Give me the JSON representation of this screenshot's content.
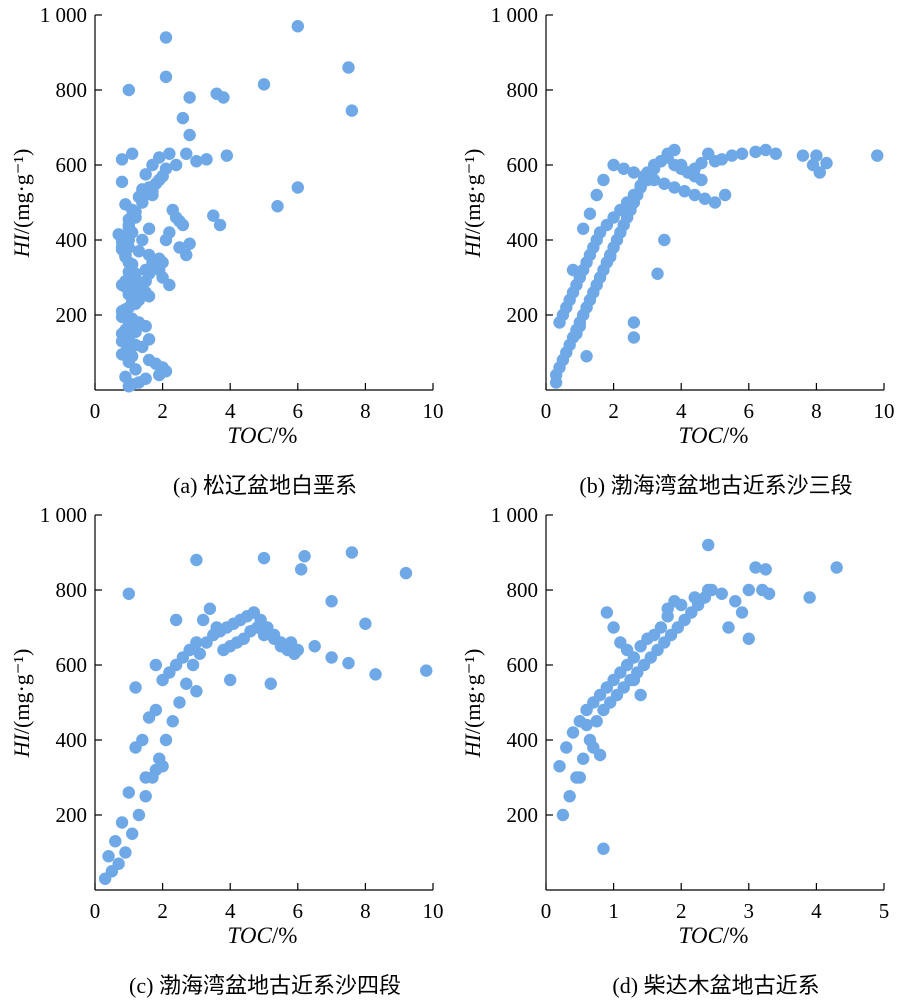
{
  "chart_data": [
    {
      "type": "scatter",
      "caption": "(a) 松辽盆地白垩系",
      "xlabel": "TOC/%",
      "ylabel": "HI/(mg·g⁻¹)",
      "xlim": [
        0,
        10
      ],
      "ylim": [
        0,
        1000
      ],
      "xticks": [
        "0",
        "2",
        "4",
        "6",
        "8",
        "10"
      ],
      "yticks": [
        "200",
        "400",
        "600",
        "800",
        "1 000"
      ],
      "color": "#6fa8e6",
      "x": [
        2.1,
        6.0,
        2.1,
        1.0,
        5.0,
        7.5,
        7.6,
        3.6,
        3.8,
        2.8,
        2.6,
        2.8,
        0.8,
        1.1,
        2.2,
        2.7,
        3.0,
        3.3,
        3.9,
        2.4,
        2.0,
        1.9,
        1.6,
        1.7,
        6.0,
        5.4,
        3.5,
        3.7,
        2.5,
        2.8,
        1.4,
        1.1,
        1.2,
        1.6,
        1.0,
        1.0,
        0.9,
        1.3,
        0.9,
        1.0,
        1.8,
        1.5,
        1.2,
        1.1,
        0.9,
        0.8,
        1.0,
        1.5,
        1.6,
        1.3,
        1.2,
        1.0,
        0.8,
        0.9,
        1.1,
        1.3,
        1.5,
        0.9,
        0.8,
        1.0,
        0.8,
        1.2,
        1.0,
        0.9,
        1.1,
        1.6,
        1.8,
        2.0,
        2.1,
        1.9,
        1.5,
        1.3,
        1.1,
        1.0,
        0.9,
        1.2,
        1.0,
        0.8,
        1.4,
        1.6,
        1.2,
        1.0,
        0.8,
        0.9,
        1.1,
        1.0,
        0.9,
        1.2,
        1.0,
        1.1,
        0.9,
        0.8,
        0.8,
        0.7,
        1.0,
        1.0,
        1.2,
        0.9,
        1.3,
        1.4,
        0.8,
        1.5,
        1.7,
        1.9,
        2.1,
        2.0,
        1.8,
        1.7,
        1.4,
        2.3,
        2.4,
        2.6,
        2.2,
        2.1,
        2.5,
        2.7,
        1.9,
        2.0,
        1.8,
        1.6,
        1.5,
        1.3,
        1.2,
        1.1,
        1.4,
        1.0,
        1.6,
        1.7,
        1.9,
        2.0,
        2.2,
        0.9,
        0.8,
        1.1,
        1.0
      ],
      "y": [
        940,
        970,
        835,
        800,
        815,
        860,
        745,
        790,
        780,
        780,
        725,
        680,
        615,
        630,
        630,
        630,
        610,
        615,
        625,
        600,
        570,
        560,
        540,
        520,
        540,
        490,
        465,
        440,
        450,
        390,
        500,
        480,
        460,
        430,
        420,
        400,
        380,
        370,
        360,
        340,
        330,
        320,
        310,
        300,
        290,
        280,
        270,
        260,
        250,
        240,
        230,
        220,
        210,
        200,
        190,
        180,
        170,
        160,
        150,
        140,
        130,
        120,
        110,
        100,
        90,
        80,
        70,
        60,
        50,
        40,
        30,
        20,
        15,
        10,
        35,
        55,
        75,
        95,
        115,
        135,
        155,
        175,
        195,
        215,
        235,
        255,
        275,
        295,
        315,
        335,
        355,
        375,
        395,
        415,
        435,
        455,
        475,
        495,
        515,
        535,
        555,
        575,
        600,
        620,
        590,
        570,
        550,
        530,
        510,
        480,
        460,
        440,
        420,
        400,
        380,
        360,
        350,
        340,
        330,
        310,
        290,
        270,
        250,
        230,
        400,
        380,
        360,
        340,
        320,
        300,
        280,
        360,
        380,
        420,
        440
      ],
      "bubble_note": ""
    },
    {
      "type": "scatter",
      "caption": "(b) 渤海湾盆地古近系沙三段",
      "xlabel": "TOC/%",
      "ylabel": "HI/(mg·g⁻¹)",
      "xlim": [
        0,
        10
      ],
      "ylim": [
        0,
        1000
      ],
      "xticks": [
        "0",
        "2",
        "4",
        "6",
        "8",
        "10"
      ],
      "yticks": [
        "200",
        "400",
        "600",
        "800",
        "1 000"
      ],
      "color": "#6fa8e6",
      "x": [
        9.8,
        8.3,
        8.1,
        7.9,
        8.0,
        7.6,
        6.8,
        6.5,
        6.2,
        5.8,
        5.5,
        5.2,
        5.0,
        4.8,
        4.6,
        4.4,
        4.2,
        4.0,
        3.8,
        3.6,
        3.4,
        3.2,
        3.0,
        2.8,
        2.6,
        2.4,
        2.2,
        2.0,
        1.8,
        1.6,
        1.5,
        1.4,
        1.3,
        1.2,
        1.1,
        1.0,
        0.9,
        0.8,
        0.7,
        0.6,
        0.5,
        0.4,
        0.3,
        0.3,
        0.4,
        0.5,
        0.6,
        0.7,
        0.8,
        0.9,
        1.0,
        1.1,
        1.2,
        1.3,
        1.4,
        1.5,
        1.6,
        1.7,
        1.8,
        1.9,
        2.0,
        2.1,
        2.2,
        2.3,
        2.4,
        2.5,
        2.6,
        2.7,
        2.8,
        2.9,
        3.0,
        3.2,
        3.4,
        3.6,
        3.8,
        4.0,
        4.2,
        4.4,
        4.6,
        3.5,
        3.3,
        2.6,
        2.6,
        1.9,
        1.2,
        0.8,
        0.9,
        1.0,
        1.1,
        1.3,
        1.5,
        1.7,
        2.0,
        2.3,
        2.6,
        2.9,
        3.2,
        3.5,
        3.8,
        4.1,
        4.4,
        4.7,
        5.0,
        5.3
      ],
      "y": [
        625,
        605,
        580,
        600,
        625,
        625,
        630,
        640,
        635,
        630,
        625,
        615,
        610,
        630,
        605,
        590,
        580,
        600,
        640,
        630,
        610,
        590,
        560,
        545,
        520,
        500,
        480,
        460,
        440,
        420,
        400,
        380,
        360,
        340,
        320,
        300,
        280,
        260,
        240,
        220,
        200,
        180,
        40,
        20,
        60,
        80,
        100,
        120,
        140,
        160,
        180,
        200,
        220,
        240,
        260,
        280,
        300,
        320,
        340,
        360,
        380,
        400,
        420,
        440,
        460,
        480,
        500,
        520,
        540,
        560,
        580,
        600,
        610,
        620,
        600,
        590,
        580,
        570,
        560,
        400,
        310,
        180,
        140,
        355,
        90,
        320,
        150,
        170,
        430,
        470,
        520,
        560,
        600,
        590,
        580,
        570,
        560,
        550,
        540,
        530,
        520,
        510,
        500,
        520
      ]
    },
    {
      "type": "scatter",
      "caption": "(c) 渤海湾盆地古近系沙四段",
      "xlabel": "TOC/%",
      "ylabel": "HI/(mg·g⁻¹)",
      "xlim": [
        0,
        10
      ],
      "ylim": [
        0,
        1000
      ],
      "xticks": [
        "0",
        "2",
        "4",
        "6",
        "8",
        "10"
      ],
      "yticks": [
        "200",
        "400",
        "600",
        "800",
        "1 000"
      ],
      "color": "#6fa8e6",
      "x": [
        1.0,
        3.0,
        5.0,
        6.2,
        7.6,
        9.2,
        6.1,
        7.0,
        8.0,
        9.8,
        8.3,
        7.5,
        7.0,
        6.5,
        6.0,
        5.8,
        5.5,
        5.3,
        5.0,
        4.8,
        4.6,
        4.4,
        4.2,
        4.0,
        3.8,
        3.6,
        3.4,
        3.2,
        3.0,
        2.8,
        2.6,
        2.4,
        2.2,
        2.0,
        1.8,
        1.6,
        1.4,
        1.2,
        1.0,
        0.8,
        0.6,
        0.4,
        0.3,
        0.5,
        0.7,
        0.9,
        1.1,
        1.3,
        1.5,
        1.7,
        1.9,
        2.1,
        2.3,
        2.5,
        2.7,
        2.9,
        3.1,
        3.3,
        3.5,
        3.7,
        3.9,
        4.1,
        4.3,
        4.5,
        4.7,
        4.9,
        5.1,
        5.3,
        5.5,
        5.7,
        5.9,
        1.2,
        1.8,
        2.4,
        3.0,
        4.0,
        5.2,
        1.5,
        1.8,
        2.0
      ],
      "y": [
        790,
        880,
        885,
        890,
        900,
        845,
        855,
        770,
        710,
        585,
        575,
        605,
        620,
        650,
        640,
        660,
        650,
        670,
        680,
        700,
        690,
        670,
        660,
        650,
        640,
        700,
        750,
        720,
        660,
        640,
        620,
        600,
        580,
        560,
        480,
        460,
        400,
        380,
        260,
        180,
        130,
        90,
        30,
        50,
        70,
        100,
        150,
        200,
        250,
        300,
        350,
        400,
        450,
        500,
        550,
        600,
        630,
        660,
        680,
        690,
        700,
        710,
        720,
        730,
        740,
        720,
        700,
        680,
        660,
        640,
        630,
        540,
        600,
        720,
        530,
        560,
        550,
        300,
        320,
        330
      ]
    },
    {
      "type": "scatter",
      "caption": "(d) 柴达木盆地古近系",
      "xlabel": "TOC/%",
      "ylabel": "HI/(mg·g⁻¹)",
      "xlim": [
        0,
        5
      ],
      "ylim": [
        0,
        1000
      ],
      "xticks": [
        "0",
        "1",
        "2",
        "3",
        "4",
        "5"
      ],
      "yticks": [
        "200",
        "400",
        "600",
        "800",
        "1 000"
      ],
      "color": "#6fa8e6",
      "x": [
        2.4,
        3.1,
        3.25,
        4.3,
        3.9,
        3.3,
        3.0,
        2.8,
        2.6,
        2.4,
        2.2,
        2.0,
        1.8,
        1.7,
        1.6,
        1.5,
        1.4,
        1.3,
        1.2,
        1.1,
        1.0,
        0.9,
        0.8,
        0.7,
        0.6,
        0.5,
        0.4,
        0.3,
        0.2,
        0.25,
        0.35,
        0.45,
        0.55,
        0.65,
        0.75,
        0.85,
        0.95,
        1.05,
        1.15,
        1.25,
        1.35,
        1.45,
        1.55,
        1.65,
        1.75,
        1.85,
        1.95,
        2.05,
        2.15,
        2.25,
        2.35,
        2.45,
        0.85,
        0.9,
        1.0,
        1.1,
        1.2,
        1.3,
        1.4,
        0.6,
        0.7,
        0.8,
        0.5,
        2.7,
        3.0,
        3.2,
        1.8,
        1.9,
        2.9
      ],
      "y": [
        920,
        860,
        855,
        860,
        780,
        790,
        800,
        770,
        790,
        800,
        780,
        760,
        730,
        700,
        680,
        670,
        650,
        620,
        600,
        580,
        560,
        540,
        520,
        500,
        480,
        450,
        420,
        380,
        330,
        200,
        250,
        300,
        350,
        400,
        450,
        480,
        500,
        520,
        540,
        560,
        580,
        600,
        620,
        640,
        660,
        680,
        700,
        720,
        740,
        760,
        780,
        800,
        110,
        740,
        700,
        660,
        640,
        560,
        520,
        440,
        380,
        360,
        300,
        700,
        670,
        800,
        750,
        770,
        740
      ]
    }
  ]
}
